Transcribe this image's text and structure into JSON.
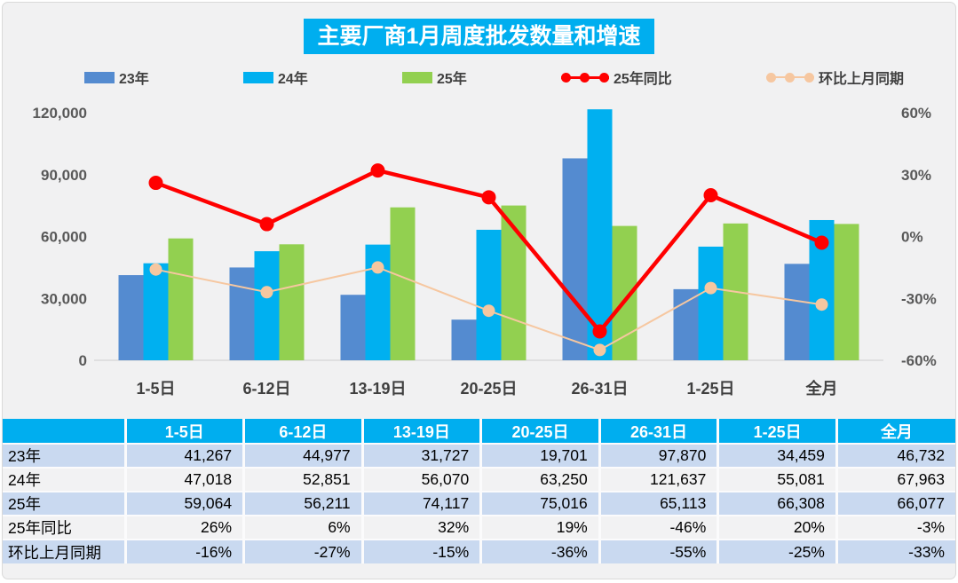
{
  "title": "主要厂商1月周度批发数量和增速",
  "colors": {
    "title_bg": "#00AEEF",
    "header_bg": "#00AEEF",
    "bar_23": "#548BD0",
    "bar_24": "#00B0F0",
    "bar_25": "#92D050",
    "line_yoy": "#FF0000",
    "line_mom": "#F6C7A0",
    "axis_text": "#595959",
    "category_text": "#3F3F3F",
    "row_alt_bg": "#C9D9F0",
    "row_plain_bg": "#F2F2F3",
    "card_bg": "#F1F1F2",
    "baseline": "#D9D9D9"
  },
  "legend": [
    {
      "label": "23年",
      "type": "bar",
      "color": "#548BD0"
    },
    {
      "label": "24年",
      "type": "bar",
      "color": "#00B0F0"
    },
    {
      "label": "25年",
      "type": "bar",
      "color": "#92D050"
    },
    {
      "label": "25年同比",
      "type": "line",
      "color": "#FF0000"
    },
    {
      "label": "环比上月同期",
      "type": "line",
      "color": "#F6C7A0"
    }
  ],
  "chart_data": {
    "type": "bar",
    "subtype": "grouped-bars-with-lines-combo",
    "title": "主要厂商1月周度批发数量和增速",
    "categories": [
      "1-5日",
      "6-12日",
      "13-19日",
      "20-25日",
      "26-31日",
      "1-25日",
      "全月"
    ],
    "series": [
      {
        "name": "23年",
        "type": "bar",
        "axis": "left",
        "values": [
          41267,
          44977,
          31727,
          19701,
          97870,
          34459,
          46732
        ]
      },
      {
        "name": "24年",
        "type": "bar",
        "axis": "left",
        "values": [
          47018,
          52851,
          56070,
          63250,
          121637,
          55081,
          67963
        ]
      },
      {
        "name": "25年",
        "type": "bar",
        "axis": "left",
        "values": [
          59064,
          56211,
          74117,
          75016,
          65113,
          66308,
          66077
        ]
      },
      {
        "name": "25年同比",
        "type": "line",
        "axis": "right",
        "values": [
          26,
          6,
          32,
          19,
          -46,
          20,
          -3
        ]
      },
      {
        "name": "环比上月同期",
        "type": "line",
        "axis": "right",
        "values": [
          -16,
          -27,
          -15,
          -36,
          -55,
          -25,
          -33
        ]
      }
    ],
    "left_axis": {
      "min": 0,
      "max": 120000,
      "step": 30000,
      "ticks": [
        "0",
        "30,000",
        "60,000",
        "90,000",
        "120,000"
      ]
    },
    "right_axis": {
      "min": -60,
      "max": 60,
      "step": 30,
      "ticks": [
        "-60%",
        "-30%",
        "0%",
        "30%",
        "60%"
      ],
      "unit": "%"
    },
    "grid": "off",
    "legend_position": "top"
  },
  "table": {
    "header": [
      "",
      "1-5日",
      "6-12日",
      "13-19日",
      "20-25日",
      "26-31日",
      "1-25日",
      "全月"
    ],
    "rows": [
      {
        "label": "23年",
        "cells": [
          "41,267",
          "44,977",
          "31,727",
          "19,701",
          "97,870",
          "34,459",
          "46,732"
        ]
      },
      {
        "label": "24年",
        "cells": [
          "47,018",
          "52,851",
          "56,070",
          "63,250",
          "121,637",
          "55,081",
          "67,963"
        ]
      },
      {
        "label": "25年",
        "cells": [
          "59,064",
          "56,211",
          "74,117",
          "75,016",
          "65,113",
          "66,308",
          "66,077"
        ]
      },
      {
        "label": "25年同比",
        "cells": [
          "26%",
          "6%",
          "32%",
          "19%",
          "-46%",
          "20%",
          "-3%"
        ]
      },
      {
        "label": "环比上月同期",
        "cells": [
          "-16%",
          "-27%",
          "-15%",
          "-36%",
          "-55%",
          "-25%",
          "-33%"
        ]
      }
    ]
  }
}
